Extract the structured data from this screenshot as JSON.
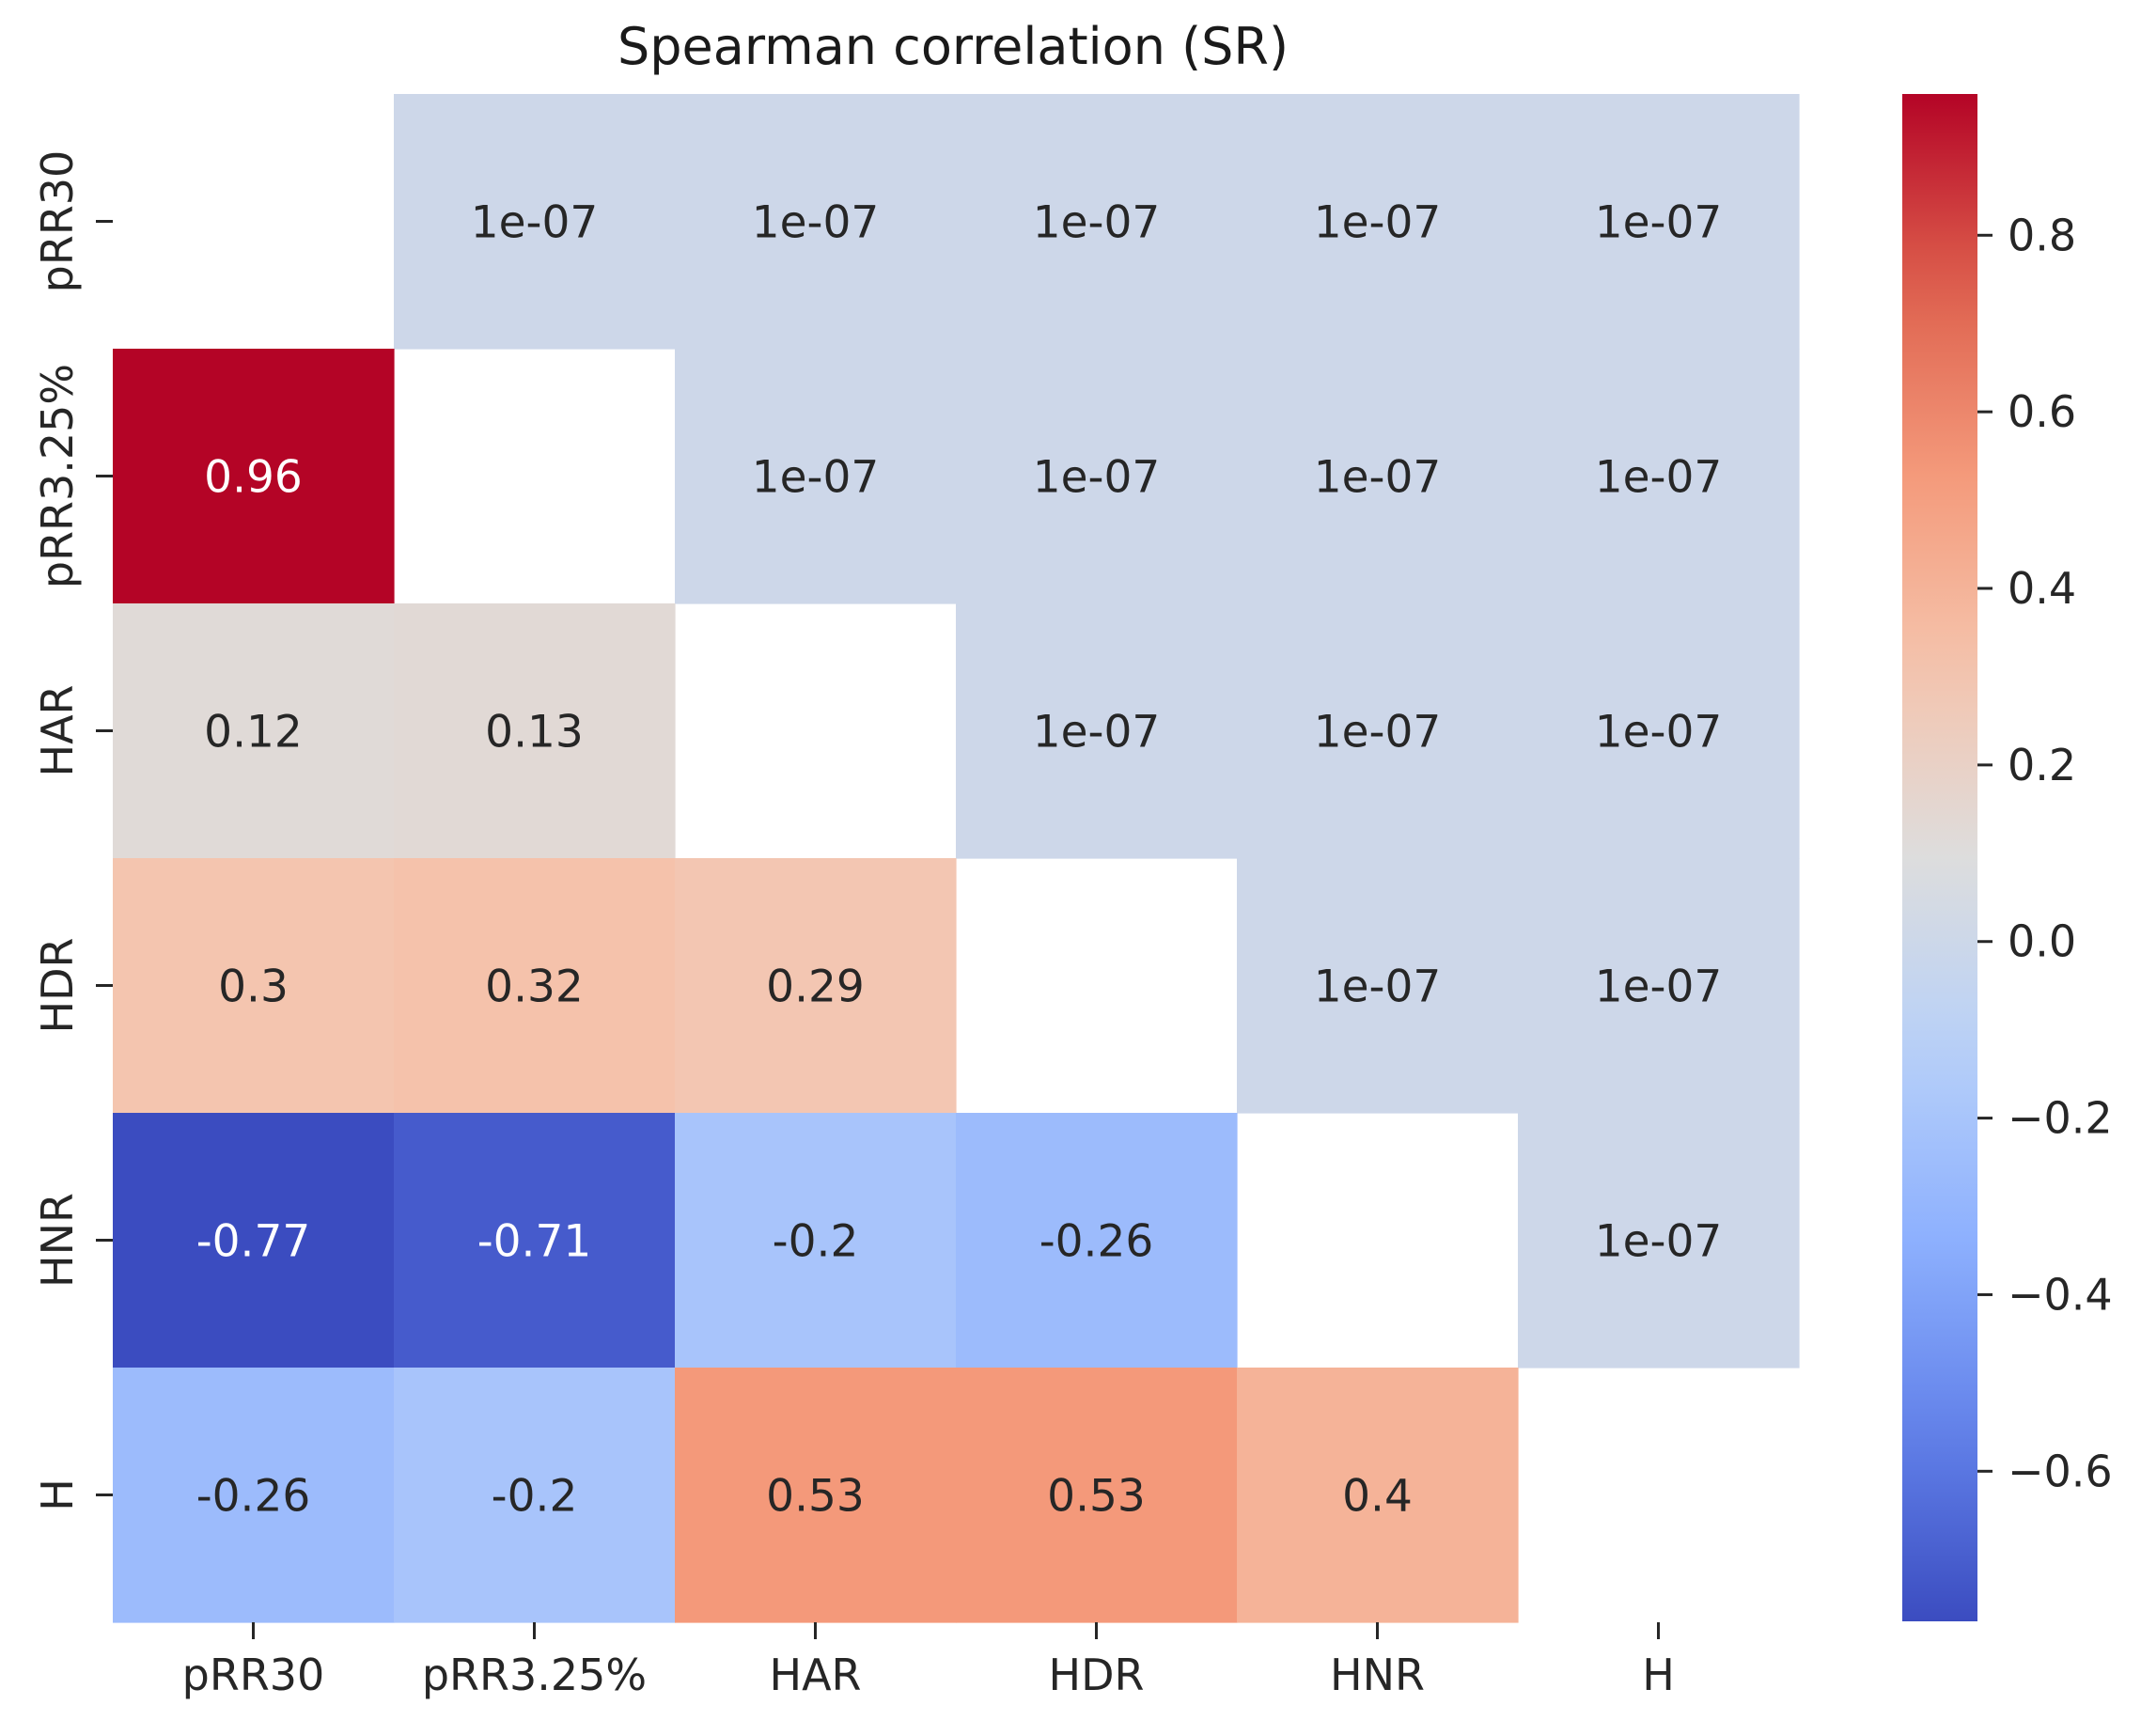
{
  "chart_data": {
    "type": "heatmap",
    "title": "Spearman correlation (SR)",
    "xlabel": "",
    "ylabel": "",
    "colormap": "coolwarm",
    "x_categories": [
      "pRR30",
      "pRR3.25%",
      "HAR",
      "HDR",
      "HNR",
      "H"
    ],
    "y_categories": [
      "pRR30",
      "pRR3.25%",
      "HAR",
      "HDR",
      "HNR",
      "H"
    ],
    "cells": [
      [
        null,
        "1e-07",
        "1e-07",
        "1e-07",
        "1e-07",
        "1e-07"
      ],
      [
        0.96,
        null,
        "1e-07",
        "1e-07",
        "1e-07",
        "1e-07"
      ],
      [
        0.12,
        0.13,
        null,
        "1e-07",
        "1e-07",
        "1e-07"
      ],
      [
        0.3,
        0.32,
        0.29,
        null,
        "1e-07",
        "1e-07"
      ],
      [
        -0.77,
        -0.71,
        -0.2,
        -0.26,
        null,
        "1e-07"
      ],
      [
        -0.26,
        -0.2,
        0.53,
        0.53,
        0.4,
        null
      ]
    ],
    "colorbar": {
      "vmin": -0.77,
      "vmax": 0.96,
      "ticks": [
        0.8,
        0.6,
        0.4,
        0.2,
        0.0,
        -0.2,
        -0.4,
        -0.6
      ],
      "tick_labels": [
        "0.8",
        "0.6",
        "0.4",
        "0.2",
        "0.0",
        "−0.2",
        "−0.4",
        "−0.6"
      ]
    },
    "grid": false,
    "legend": "colorbar-right"
  }
}
